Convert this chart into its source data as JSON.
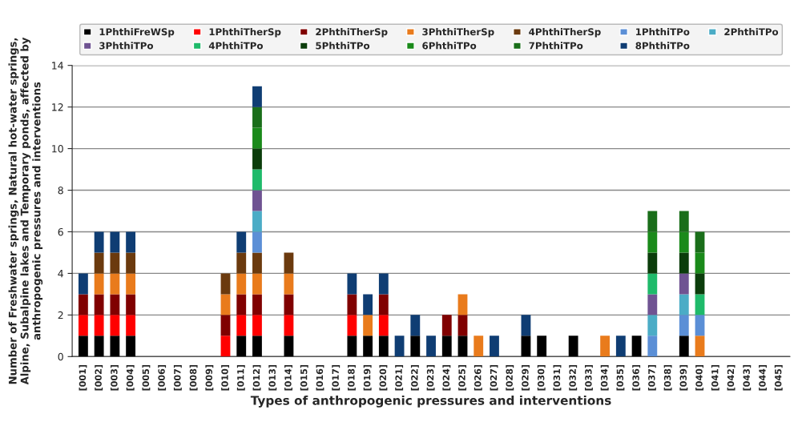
{
  "chart_data": {
    "type": "bar",
    "stacked": true,
    "xlabel": "Types of anthropogenic pressures and interventions",
    "ylabel": "Number of Freshwater springs, Natural hot-water springs, Alpine, Subalpine lakes and Temporary ponds, affected by anthropogenic pressures and interventions",
    "categories": [
      "[001]",
      "[002]",
      "[003]",
      "[004]",
      "[005]",
      "[006]",
      "[007]",
      "[008]",
      "[009]",
      "[010]",
      "[011]",
      "[012]",
      "[013]",
      "[014]",
      "[015]",
      "[016]",
      "[017]",
      "[018]",
      "[019]",
      "[020]",
      "[021]",
      "[022]",
      "[023]",
      "[024]",
      "[025]",
      "[026]",
      "[027]",
      "[028]",
      "[029]",
      "[030]",
      "[031]",
      "[032]",
      "[033]",
      "[034]",
      "[035]",
      "[036]",
      "[037]",
      "[038]",
      "[039]",
      "[040]",
      "[041]",
      "[042]",
      "[043]",
      "[044]",
      "[045]"
    ],
    "series": [
      {
        "name": "1PhthiFreWSp",
        "color": "#000000",
        "values": [
          1,
          1,
          1,
          1,
          0,
          0,
          0,
          0,
          0,
          0,
          1,
          1,
          0,
          1,
          0,
          0,
          0,
          1,
          1,
          1,
          0,
          1,
          0,
          1,
          1,
          0,
          0,
          0,
          1,
          1,
          0,
          1,
          0,
          0,
          0,
          1,
          0,
          0,
          1,
          0,
          0,
          0,
          0,
          0,
          0
        ]
      },
      {
        "name": "1PhthiTherSp",
        "color": "#ff0000",
        "values": [
          1,
          1,
          1,
          1,
          0,
          0,
          0,
          0,
          0,
          1,
          1,
          1,
          0,
          1,
          0,
          0,
          0,
          1,
          0,
          1,
          0,
          0,
          0,
          0,
          0,
          0,
          0,
          0,
          0,
          0,
          0,
          0,
          0,
          0,
          0,
          0,
          0,
          0,
          0,
          0,
          0,
          0,
          0,
          0,
          0
        ]
      },
      {
        "name": "2PhthiTherSp",
        "color": "#800000",
        "values": [
          1,
          1,
          1,
          1,
          0,
          0,
          0,
          0,
          0,
          1,
          1,
          1,
          0,
          1,
          0,
          0,
          0,
          1,
          0,
          1,
          0,
          0,
          0,
          1,
          1,
          0,
          0,
          0,
          0,
          0,
          0,
          0,
          0,
          0,
          0,
          0,
          0,
          0,
          0,
          0,
          0,
          0,
          0,
          0,
          0
        ]
      },
      {
        "name": "3PhthiTherSp",
        "color": "#e97b1c",
        "values": [
          0,
          1,
          1,
          1,
          0,
          0,
          0,
          0,
          0,
          1,
          1,
          1,
          0,
          1,
          0,
          0,
          0,
          0,
          1,
          0,
          0,
          0,
          0,
          0,
          1,
          1,
          0,
          0,
          0,
          0,
          0,
          0,
          0,
          1,
          0,
          0,
          0,
          0,
          0,
          1,
          0,
          0,
          0,
          0,
          0
        ]
      },
      {
        "name": "4PhthiTherSp",
        "color": "#6b3a0e",
        "values": [
          0,
          1,
          1,
          1,
          0,
          0,
          0,
          0,
          0,
          1,
          1,
          1,
          0,
          1,
          0,
          0,
          0,
          0,
          0,
          0,
          0,
          0,
          0,
          0,
          0,
          0,
          0,
          0,
          0,
          0,
          0,
          0,
          0,
          0,
          0,
          0,
          0,
          0,
          0,
          0,
          0,
          0,
          0,
          0,
          0
        ]
      },
      {
        "name": "1PhthiTPo",
        "color": "#5b8fd6",
        "values": [
          0,
          0,
          0,
          0,
          0,
          0,
          0,
          0,
          0,
          0,
          0,
          1,
          0,
          0,
          0,
          0,
          0,
          0,
          0,
          0,
          0,
          0,
          0,
          0,
          0,
          0,
          0,
          0,
          0,
          0,
          0,
          0,
          0,
          0,
          0,
          0,
          1,
          0,
          1,
          1,
          0,
          0,
          0,
          0,
          0
        ]
      },
      {
        "name": "2PhthiTPo",
        "color": "#4bacc6",
        "values": [
          0,
          0,
          0,
          0,
          0,
          0,
          0,
          0,
          0,
          0,
          0,
          1,
          0,
          0,
          0,
          0,
          0,
          0,
          0,
          0,
          0,
          0,
          0,
          0,
          0,
          0,
          0,
          0,
          0,
          0,
          0,
          0,
          0,
          0,
          0,
          0,
          1,
          0,
          1,
          0,
          0,
          0,
          0,
          0,
          0
        ]
      },
      {
        "name": "3PhthiTPo",
        "color": "#6f5392",
        "values": [
          0,
          0,
          0,
          0,
          0,
          0,
          0,
          0,
          0,
          0,
          0,
          1,
          0,
          0,
          0,
          0,
          0,
          0,
          0,
          0,
          0,
          0,
          0,
          0,
          0,
          0,
          0,
          0,
          0,
          0,
          0,
          0,
          0,
          0,
          0,
          0,
          1,
          0,
          1,
          0,
          0,
          0,
          0,
          0,
          0
        ]
      },
      {
        "name": "4PhthiTPo",
        "color": "#1fba6a",
        "values": [
          0,
          0,
          0,
          0,
          0,
          0,
          0,
          0,
          0,
          0,
          0,
          1,
          0,
          0,
          0,
          0,
          0,
          0,
          0,
          0,
          0,
          0,
          0,
          0,
          0,
          0,
          0,
          0,
          0,
          0,
          0,
          0,
          0,
          0,
          0,
          0,
          1,
          0,
          0,
          1,
          0,
          0,
          0,
          0,
          0
        ]
      },
      {
        "name": "5PhthiTPo",
        "color": "#0b3d0b",
        "values": [
          0,
          0,
          0,
          0,
          0,
          0,
          0,
          0,
          0,
          0,
          0,
          1,
          0,
          0,
          0,
          0,
          0,
          0,
          0,
          0,
          0,
          0,
          0,
          0,
          0,
          0,
          0,
          0,
          0,
          0,
          0,
          0,
          0,
          0,
          0,
          0,
          1,
          0,
          1,
          1,
          0,
          0,
          0,
          0,
          0
        ]
      },
      {
        "name": "6PhthiTPo",
        "color": "#1a8a1a",
        "values": [
          0,
          0,
          0,
          0,
          0,
          0,
          0,
          0,
          0,
          0,
          0,
          1,
          0,
          0,
          0,
          0,
          0,
          0,
          0,
          0,
          0,
          0,
          0,
          0,
          0,
          0,
          0,
          0,
          0,
          0,
          0,
          0,
          0,
          0,
          0,
          0,
          1,
          0,
          1,
          1,
          0,
          0,
          0,
          0,
          0
        ]
      },
      {
        "name": "7PhthiTPo",
        "color": "#1a6e1a",
        "values": [
          0,
          0,
          0,
          0,
          0,
          0,
          0,
          0,
          0,
          0,
          0,
          1,
          0,
          0,
          0,
          0,
          0,
          0,
          0,
          0,
          0,
          0,
          0,
          0,
          0,
          0,
          0,
          0,
          0,
          0,
          0,
          0,
          0,
          0,
          0,
          0,
          1,
          0,
          1,
          1,
          0,
          0,
          0,
          0,
          0
        ]
      },
      {
        "name": "8PhthiTPo",
        "color": "#0f3d73",
        "values": [
          1,
          1,
          1,
          1,
          0,
          0,
          0,
          0,
          0,
          0,
          1,
          1,
          0,
          0,
          0,
          0,
          0,
          1,
          1,
          1,
          1,
          1,
          1,
          0,
          0,
          0,
          1,
          0,
          1,
          0,
          0,
          0,
          0,
          0,
          1,
          0,
          0,
          0,
          0,
          0,
          0,
          0,
          0,
          0,
          0
        ]
      }
    ],
    "ylim": [
      0,
      14
    ],
    "yticks": [
      0,
      2,
      4,
      6,
      8,
      10,
      12,
      14
    ],
    "grid": "y",
    "legend": "top"
  }
}
